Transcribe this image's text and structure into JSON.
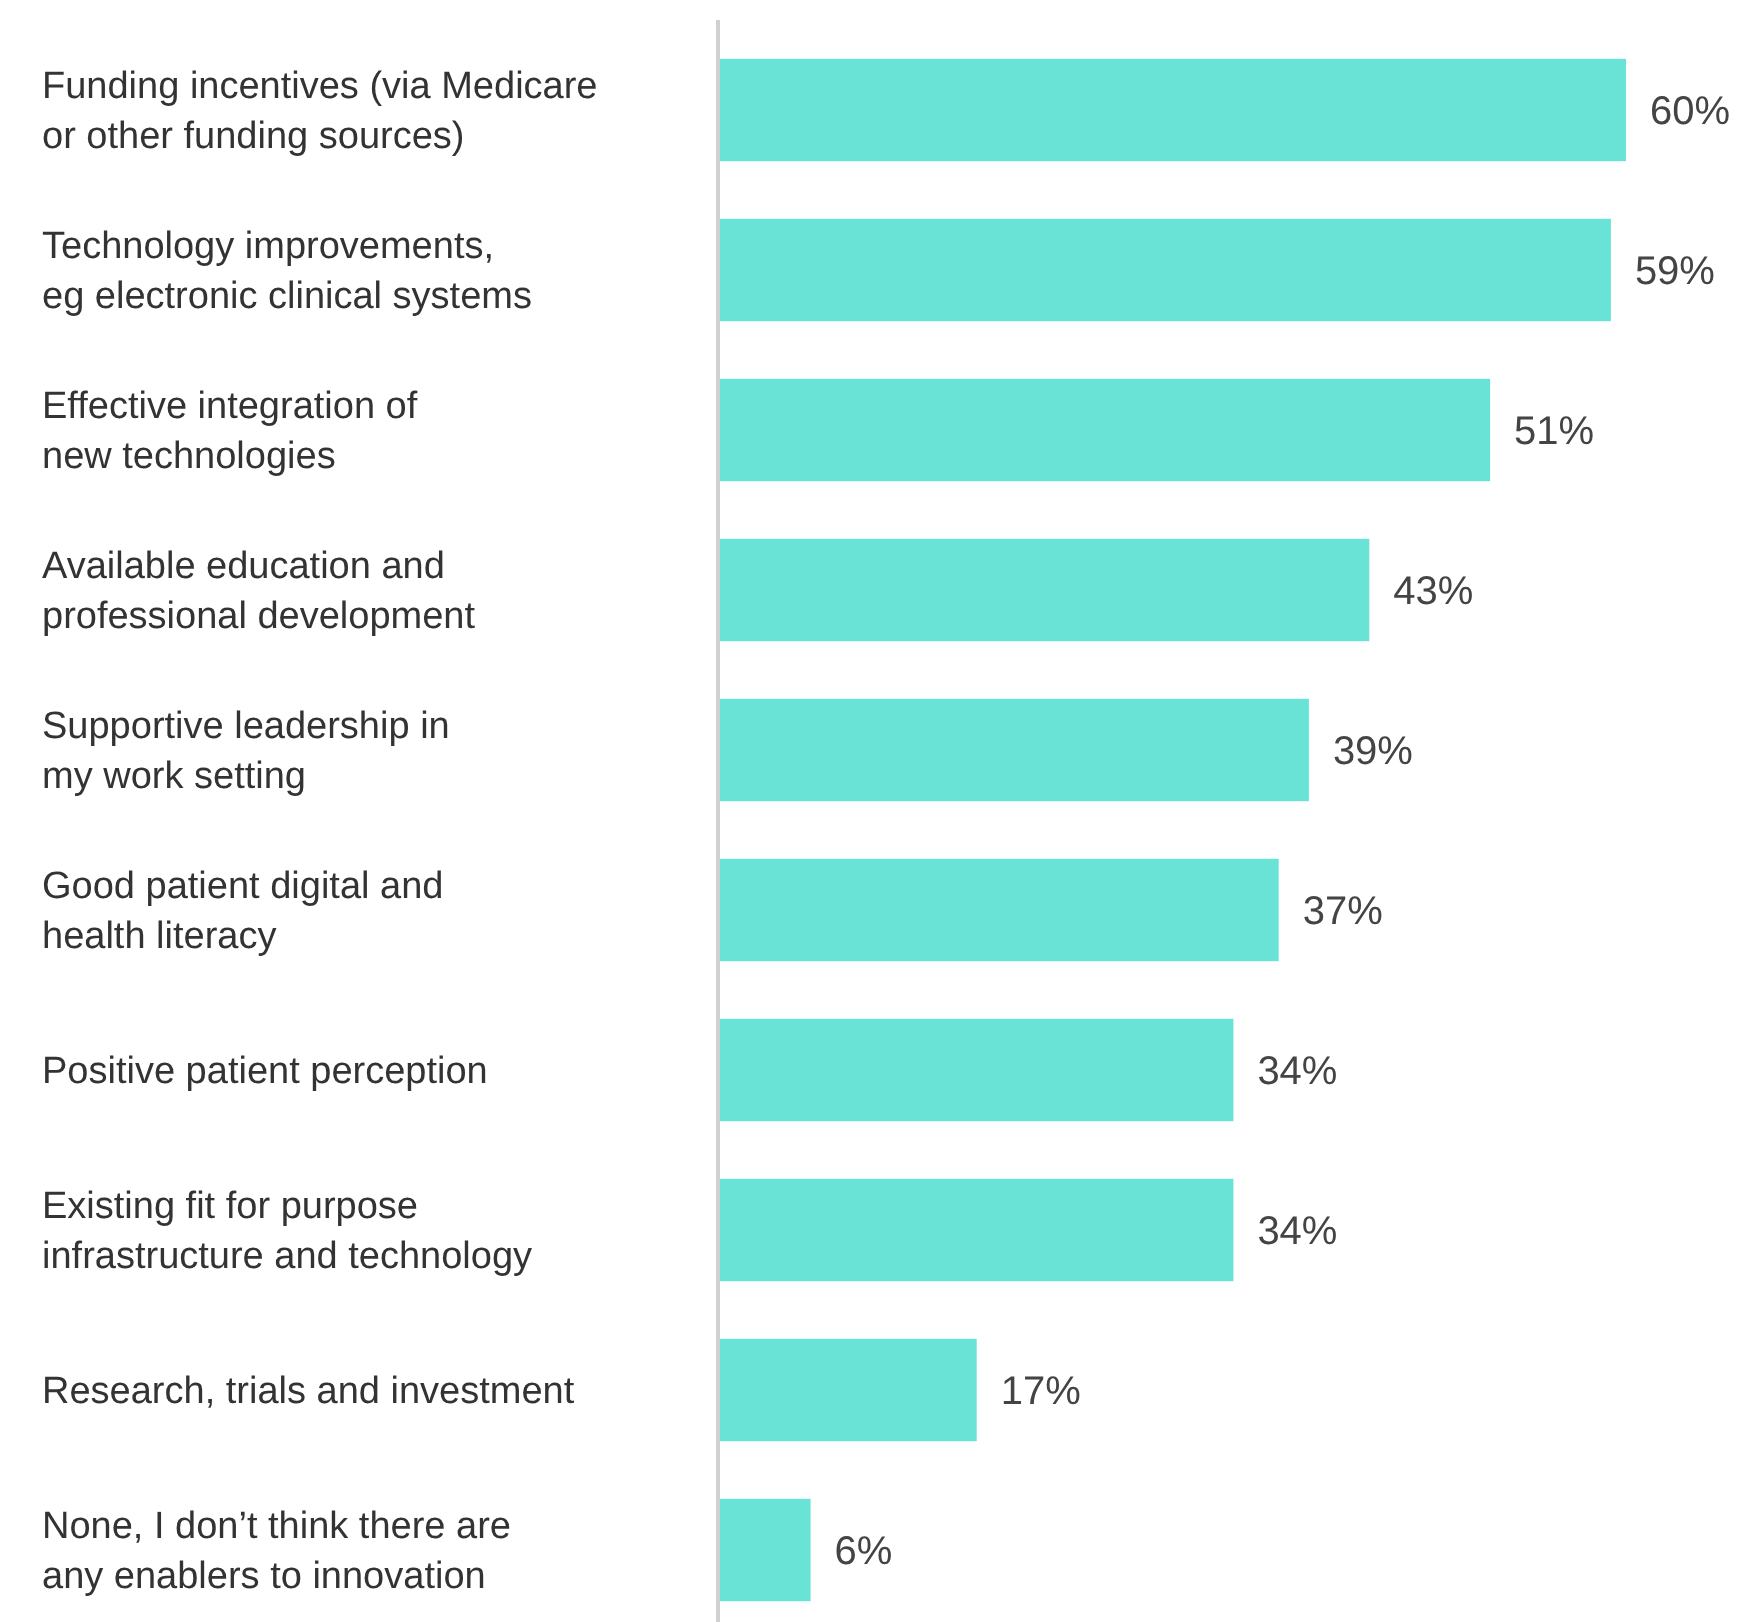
{
  "chart_data": {
    "type": "bar",
    "orientation": "horizontal",
    "categories": [
      "Funding incentives (via Medicare\nor other funding sources)",
      "Technology improvements,\neg electronic clinical systems",
      "Effective integration of\nnew technologies",
      "Available education and\nprofessional development",
      "Supportive leadership in\nmy work setting",
      "Good patient digital and\nhealth literacy",
      "Positive patient perception",
      "Existing fit for purpose\ninfrastructure and technology",
      "Research, trials and investment",
      "None, I don’t think there are\nany enablers to innovation"
    ],
    "values": [
      60,
      59,
      51,
      43,
      39,
      37,
      34,
      34,
      17,
      6
    ],
    "value_labels": [
      "60%",
      "59%",
      "51%",
      "43%",
      "39%",
      "37%",
      "34%",
      "34%",
      "17%",
      "6%"
    ],
    "color": "#68e3d6"
  }
}
